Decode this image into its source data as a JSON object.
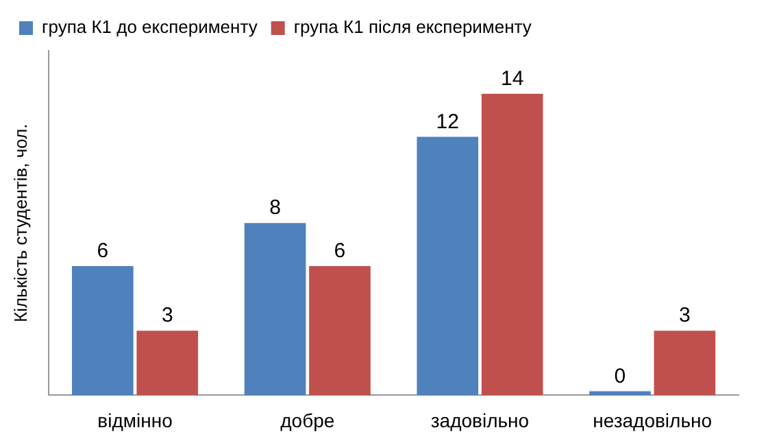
{
  "chart_data": {
    "type": "bar",
    "ylabel": "Кількість студентів, чол.",
    "categories": [
      "відмінно",
      "добре",
      "задовільно",
      "незадовільно"
    ],
    "series": [
      {
        "name": "група К1 до експерименту",
        "color": "#4f81bd",
        "values": [
          6,
          8,
          12,
          0
        ]
      },
      {
        "name": "група К1 після експерименту",
        "color": "#c0504d",
        "values": [
          3,
          6,
          14,
          3
        ]
      }
    ],
    "data_labels": true,
    "legend": "top left",
    "grid": false
  }
}
